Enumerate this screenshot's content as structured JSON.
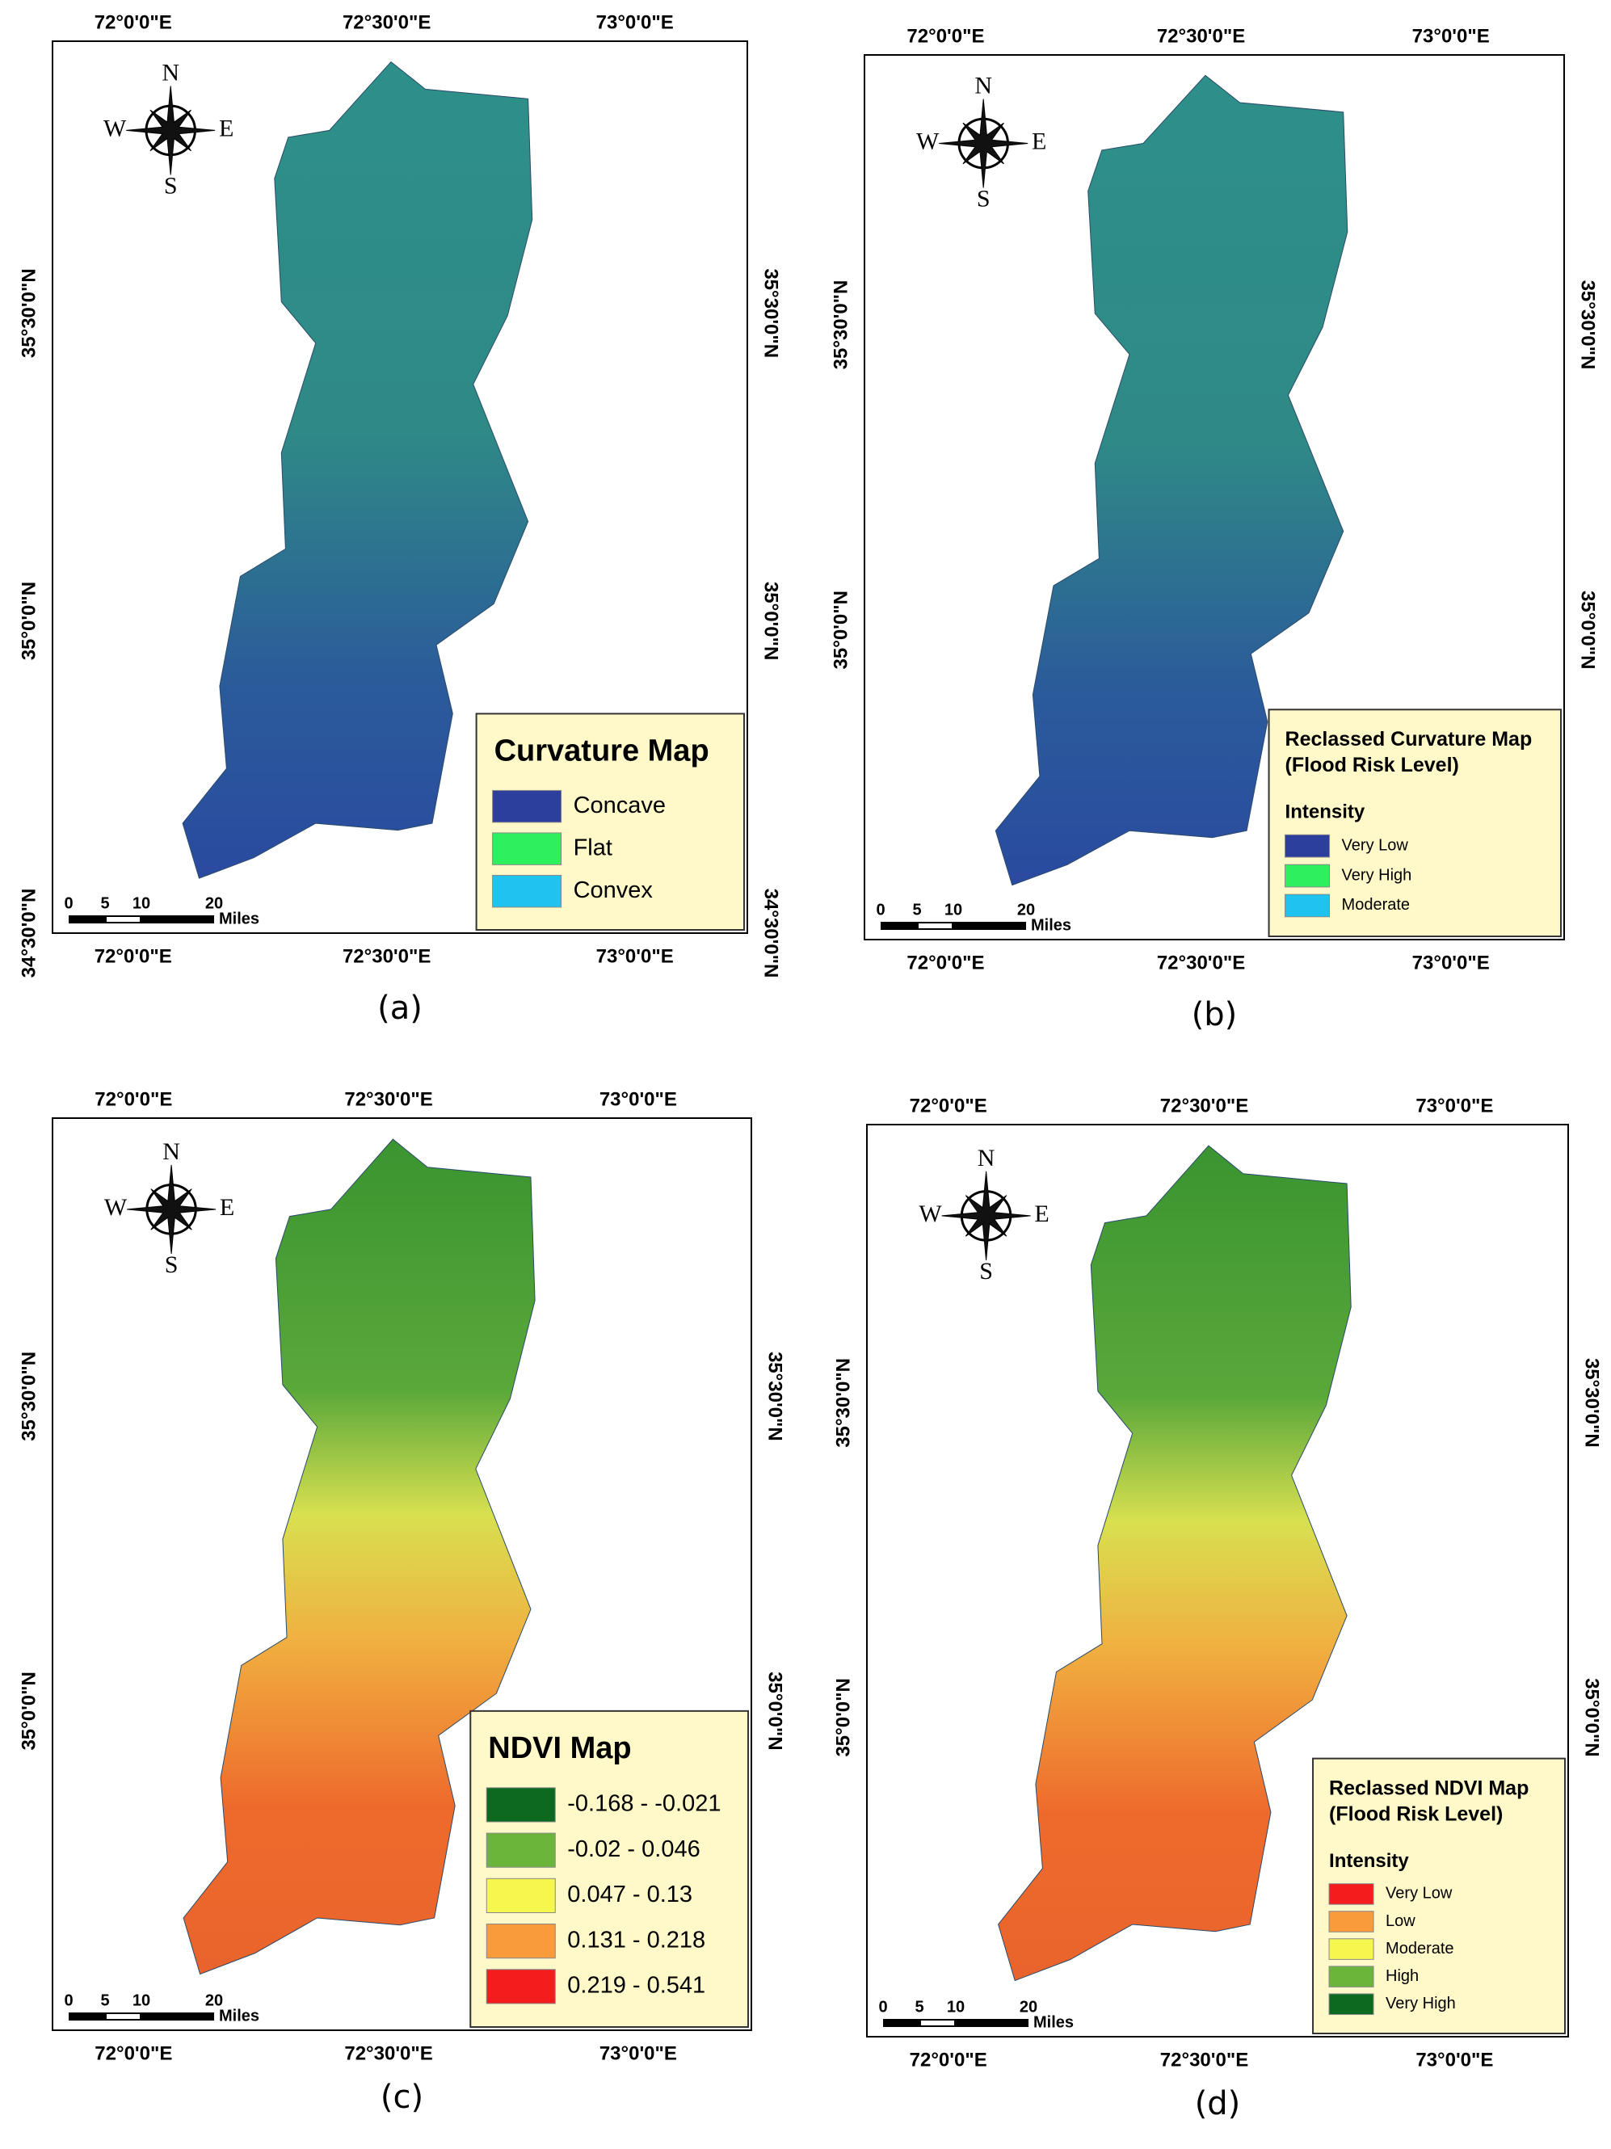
{
  "panels": [
    {
      "label": "(a)",
      "top_lon": [
        "72°0'0\"E",
        "72°30'0\"E",
        "73°0'0\"E"
      ],
      "bottom_lon": [
        "72°0'0\"E",
        "72°30'0\"E",
        "73°0'0\"E"
      ],
      "left_lat": [
        "35°30'0\"N",
        "35°0'0\"N",
        "34°30'0\"N"
      ],
      "right_lat": [
        "35°30'0\"N",
        "35°0'0\"N",
        "34°30'0\"N"
      ],
      "compass": {
        "n": "N",
        "e": "E",
        "s": "S",
        "w": "W"
      },
      "legend": {
        "title": "Curvature Map",
        "items": [
          {
            "label": "Concave",
            "color": "#2c3f9c"
          },
          {
            "label": "Flat",
            "color": "#2cf05c"
          },
          {
            "label": "Convex",
            "color": "#1ec3f0"
          }
        ]
      },
      "scale_bar": {
        "ticks": [
          "0",
          "5",
          "10",
          "20"
        ],
        "unit": "Miles"
      }
    },
    {
      "label": "(b)",
      "top_lon": [
        "72°0'0\"E",
        "72°30'0\"E",
        "73°0'0\"E"
      ],
      "bottom_lon": [
        "72°0'0\"E",
        "72°30'0\"E",
        "73°0'0\"E"
      ],
      "left_lat": [
        "35°30'0\"N",
        "35°0'0\"N"
      ],
      "right_lat": [
        "35°30'0\"N",
        "35°0'0\"N"
      ],
      "compass": {
        "n": "N",
        "e": "E",
        "s": "S",
        "w": "W"
      },
      "legend": {
        "title": "Reclassed Curvature Map",
        "subtitle": "(Flood Risk Level)",
        "heading": "Intensity",
        "items": [
          {
            "label": "Very Low",
            "color": "#2c3f9c"
          },
          {
            "label": "Very High",
            "color": "#2cf05c"
          },
          {
            "label": "Moderate",
            "color": "#1ec3f0"
          }
        ]
      },
      "scale_bar": {
        "ticks": [
          "0",
          "5",
          "10",
          "20"
        ],
        "unit": "Miles"
      }
    },
    {
      "label": "(c)",
      "top_lon": [
        "72°0'0\"E",
        "72°30'0\"E",
        "73°0'0\"E"
      ],
      "bottom_lon": [
        "72°0'0\"E",
        "72°30'0\"E",
        "73°0'0\"E"
      ],
      "left_lat": [
        "35°30'0\"N",
        "35°0'0\"N"
      ],
      "right_lat": [
        "35°30'0\"N",
        "35°0'0\"N"
      ],
      "compass": {
        "n": "N",
        "e": "E",
        "s": "S",
        "w": "W"
      },
      "legend": {
        "title": "NDVI Map",
        "items": [
          {
            "label": "-0.168 - -0.021",
            "color": "#0b6a1f"
          },
          {
            "label": "-0.02 - 0.046",
            "color": "#6bb63a"
          },
          {
            "label": "0.047 - 0.13",
            "color": "#f5f74e"
          },
          {
            "label": "0.131 - 0.218",
            "color": "#f99b3b"
          },
          {
            "label": "0.219 - 0.541",
            "color": "#f41c1c"
          }
        ]
      },
      "scale_bar": {
        "ticks": [
          "0",
          "5",
          "10",
          "20"
        ],
        "unit": "Miles"
      }
    },
    {
      "label": "(d)",
      "top_lon": [
        "72°0'0\"E",
        "72°30'0\"E",
        "73°0'0\"E"
      ],
      "bottom_lon": [
        "72°0'0\"E",
        "72°30'0\"E",
        "73°0'0\"E"
      ],
      "left_lat": [
        "35°30'0\"N",
        "35°0'0\"N"
      ],
      "right_lat": [
        "35°30'0\"N",
        "35°0'0\"N"
      ],
      "compass": {
        "n": "N",
        "e": "E",
        "s": "S",
        "w": "W"
      },
      "legend": {
        "title": "Reclassed NDVI Map",
        "subtitle": "(Flood Risk Level)",
        "heading": "Intensity",
        "items": [
          {
            "label": "Very Low",
            "color": "#f41c1c"
          },
          {
            "label": "Low",
            "color": "#f99b3b"
          },
          {
            "label": "Moderate",
            "color": "#f5f74e"
          },
          {
            "label": "High",
            "color": "#6bb63a"
          },
          {
            "label": "Very High",
            "color": "#0b6a1f"
          }
        ]
      },
      "scale_bar": {
        "ticks": [
          "0",
          "5",
          "10",
          "20"
        ],
        "unit": "Miles"
      }
    }
  ]
}
